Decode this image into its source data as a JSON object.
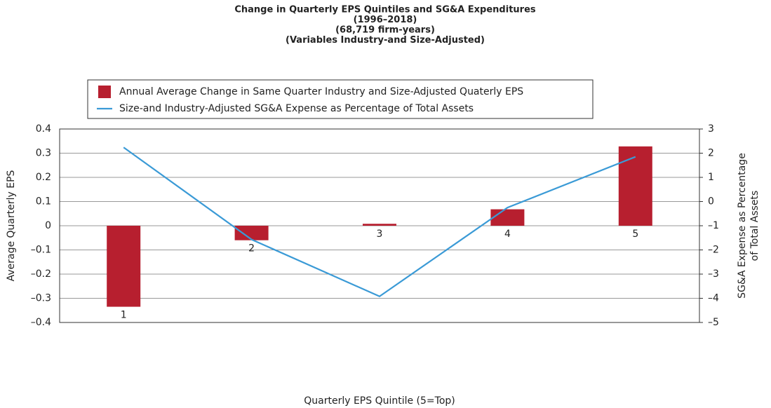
{
  "chart_data": {
    "type": "bar_line",
    "title": [
      "Change in Quarterly EPS Quintiles and SG&A Expenditures",
      "(1996–2018)",
      "(68,719 firm-years)",
      "(Variables Industry-and Size-Adjusted)"
    ],
    "xlabel": "Quarterly EPS Quintile (5=Top)",
    "ylabel": "Average Quarterly EPS",
    "y2label": [
      "SG&A Expense as Percentage",
      "of Total Assets"
    ],
    "categories": [
      "1",
      "2",
      "3",
      "4",
      "5"
    ],
    "series": [
      {
        "name": "Annual Average Change in Same Quarter Industry and Size-Adjusted Quaterly EPS",
        "color": "#b71f2f",
        "type": "bar",
        "values": [
          -0.335,
          -0.06,
          0.008,
          0.068,
          0.328
        ]
      },
      {
        "name": "Size-and Industry-Adjusted SG&A Expense as Percentage of Total Assets",
        "color": "#3a9ad6",
        "type": "line",
        "axis": "y2",
        "values": [
          2.24,
          -1.57,
          -3.92,
          -0.25,
          1.85
        ]
      }
    ],
    "ylim": [
      -0.4,
      0.4
    ],
    "yticks": [
      {
        "value": -0.4,
        "label": "–0.4"
      },
      {
        "value": -0.3,
        "label": "–0.3"
      },
      {
        "value": -0.2,
        "label": "–0.2"
      },
      {
        "value": -0.1,
        "label": "–0.1"
      },
      0,
      0.1,
      0.2,
      0.3,
      0.4
    ],
    "y2lim": [
      -5,
      3
    ],
    "y2ticks": [
      {
        "value": -5,
        "label": "–5"
      },
      {
        "value": -4,
        "label": "–4"
      },
      {
        "value": -3,
        "label": "–3"
      },
      {
        "value": -2,
        "label": "–2"
      },
      {
        "value": -1,
        "label": "–1"
      },
      0,
      1,
      2,
      3
    ],
    "grid": true,
    "legend": "top"
  }
}
